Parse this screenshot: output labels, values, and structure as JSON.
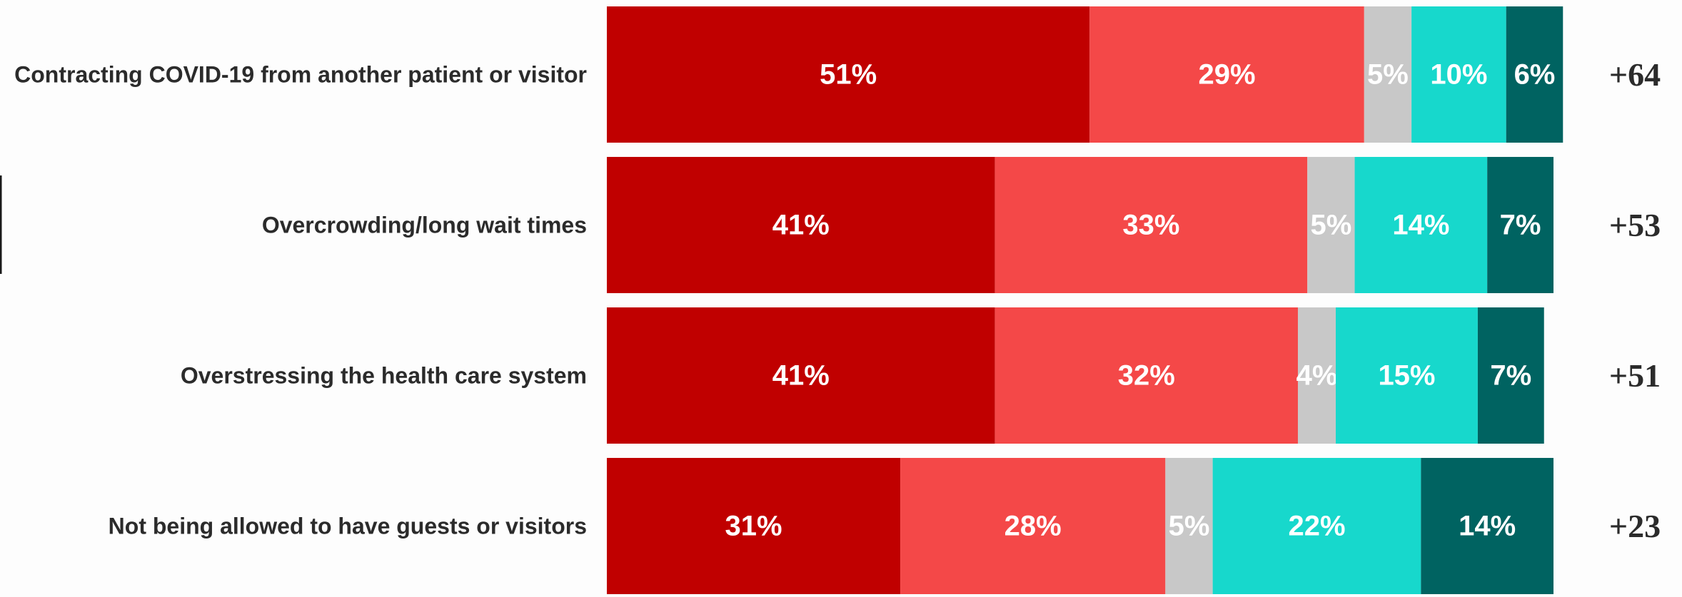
{
  "chart_data": {
    "type": "bar",
    "orientation": "horizontal",
    "stacked": true,
    "xlim": [
      0,
      100
    ],
    "categories": [
      "Contracting COVID-19 from another patient or visitor",
      "Overcrowding/long wait times",
      "Overstressing the health care system",
      "Not being allowed to have guests or visitors"
    ],
    "series": [
      {
        "color": "#c00000",
        "values": [
          51,
          41,
          41,
          31
        ],
        "labels": [
          "51%",
          "41%",
          "41%",
          "31%"
        ]
      },
      {
        "color": "#f44848",
        "values": [
          29,
          33,
          32,
          28
        ],
        "labels": [
          "29%",
          "33%",
          "32%",
          "28%"
        ]
      },
      {
        "color": "#c8c8c8",
        "values": [
          5,
          5,
          4,
          5
        ],
        "labels": [
          "5%",
          "5%",
          "4%",
          "5%"
        ]
      },
      {
        "color": "#17d8cc",
        "values": [
          10,
          14,
          15,
          22
        ],
        "labels": [
          "10%",
          "14%",
          "15%",
          "22%"
        ]
      },
      {
        "color": "#006361",
        "values": [
          6,
          7,
          7,
          14
        ],
        "labels": [
          "6%",
          "7%",
          "7%",
          "14%"
        ]
      }
    ],
    "net_labels": [
      "+64",
      "+53",
      "+51",
      "+23"
    ],
    "legend": "none",
    "grid": false
  }
}
